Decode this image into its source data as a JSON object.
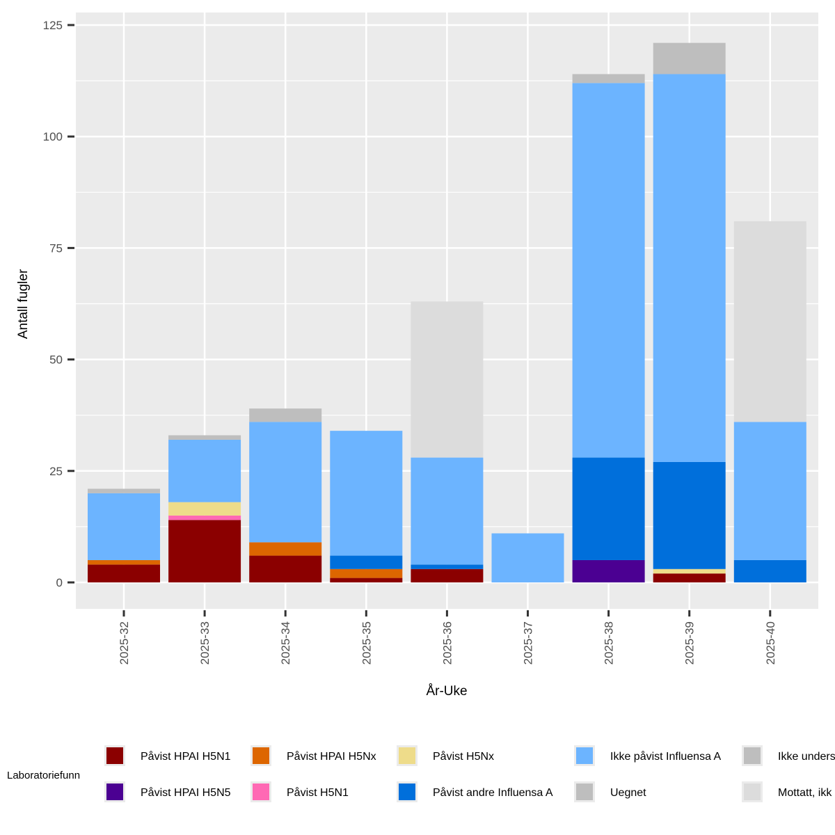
{
  "chart_data": {
    "type": "bar",
    "stacked": true,
    "xlabel": "År-Uke",
    "ylabel": "Antall fugler",
    "ylim": [
      -6,
      128
    ],
    "yticks": [
      0,
      25,
      50,
      75,
      100,
      125
    ],
    "grid": true,
    "categories": [
      "2025-32",
      "2025-33",
      "2025-34",
      "2025-35",
      "2025-36",
      "2025-37",
      "2025-38",
      "2025-39",
      "2025-40"
    ],
    "legend_title": "Laboratoriefunn",
    "legend_position": "bottom",
    "series": [
      {
        "name": "Påvist HPAI H5N1",
        "color": "#8B0000",
        "values": [
          4,
          14,
          6,
          1,
          3,
          0,
          0,
          2,
          0
        ]
      },
      {
        "name": "Påvist HPAI H5N5",
        "color": "#4B0092",
        "values": [
          0,
          0,
          0,
          0,
          0,
          0,
          5,
          0,
          0
        ]
      },
      {
        "name": "Påvist HPAI H5Nx",
        "color": "#DD6600",
        "values": [
          1,
          0,
          3,
          2,
          0,
          0,
          0,
          0,
          0
        ]
      },
      {
        "name": "Påvist H5N1",
        "color": "#FF69B4",
        "values": [
          0,
          1,
          0,
          0,
          0,
          0,
          0,
          0,
          0
        ]
      },
      {
        "name": "Påvist H5Nx",
        "color": "#EEDC8A",
        "values": [
          0,
          3,
          0,
          0,
          0,
          0,
          0,
          1,
          0
        ]
      },
      {
        "name": "Påvist andre Influensa A",
        "color": "#006FDB",
        "values": [
          0,
          0,
          0,
          3,
          1,
          0,
          23,
          24,
          5
        ]
      },
      {
        "name": "Ikke påvist Influensa A",
        "color": "#6CB4FF",
        "values": [
          15,
          14,
          27,
          28,
          24,
          11,
          84,
          87,
          31
        ]
      },
      {
        "name": "Uegnet",
        "color": "#BEBEBE",
        "values": [
          1,
          1,
          3,
          0,
          0,
          0,
          2,
          7,
          0
        ]
      },
      {
        "name": "Ikke unders",
        "color": "#BEBEBE",
        "values": [
          0,
          0,
          0,
          0,
          0,
          0,
          0,
          0,
          0
        ]
      },
      {
        "name": "Mottatt, ikk",
        "color": "#DCDCDC",
        "values": [
          0,
          0,
          0,
          0,
          35,
          0,
          0,
          0,
          45
        ]
      }
    ],
    "legend_order": [
      "Påvist HPAI H5N1",
      "Påvist HPAI H5N5",
      "Påvist HPAI H5Nx",
      "Påvist H5N1",
      "Påvist H5Nx",
      "Påvist andre Influensa A",
      "Ikke påvist Influensa A",
      "Uegnet",
      "Ikke unders",
      "Mottatt, ikk"
    ]
  }
}
